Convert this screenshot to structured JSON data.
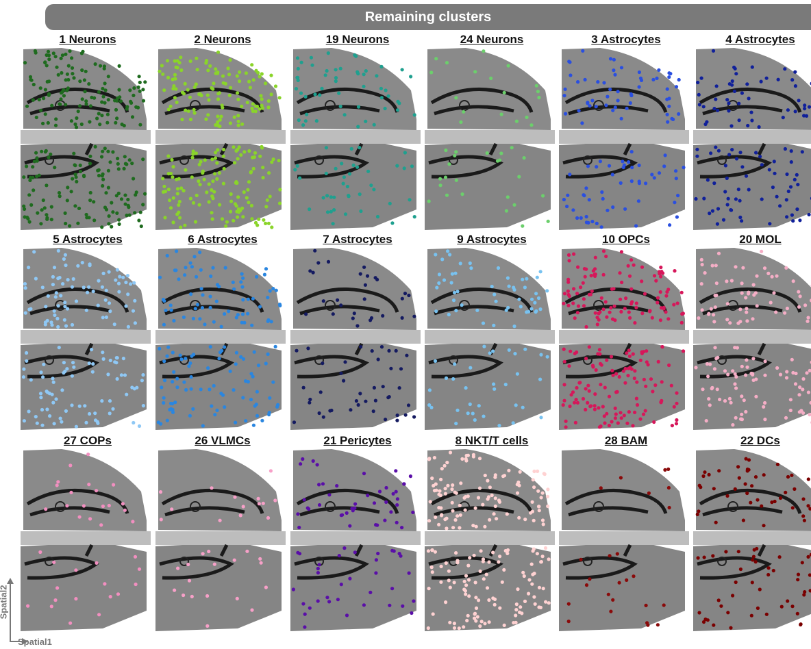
{
  "banner": {
    "title": "Remaining clusters"
  },
  "axes": {
    "y_label": "Spatial2",
    "x_label": "Spatial1"
  },
  "panels": [
    {
      "label": "1 Neurons",
      "color": "#1f6b1f",
      "density": 1.0
    },
    {
      "label": "2 Neurons",
      "color": "#8ad42a",
      "density": 1.0
    },
    {
      "label": "19 Neurons",
      "color": "#1fa08f",
      "density": 0.35
    },
    {
      "label": "24 Neurons",
      "color": "#6ccf6c",
      "density": 0.15
    },
    {
      "label": "3 Astrocytes",
      "color": "#2a4fe0",
      "density": 0.4
    },
    {
      "label": "4 Astrocytes",
      "color": "#10209a",
      "density": 0.45
    },
    {
      "label": "5 Astrocytes",
      "color": "#8fc8f5",
      "density": 0.6
    },
    {
      "label": "6 Astrocytes",
      "color": "#2a86e0",
      "density": 0.6
    },
    {
      "label": "7 Astrocytes",
      "color": "#141a60",
      "density": 0.25
    },
    {
      "label": "9 Astrocytes",
      "color": "#78c2f0",
      "density": 0.35
    },
    {
      "label": "10 OPCs",
      "color": "#d6175a",
      "density": 0.9
    },
    {
      "label": "20 MOL",
      "color": "#f5aec6",
      "density": 0.55
    },
    {
      "label": "27 COPs",
      "color": "#f28fc0",
      "density": 0.12
    },
    {
      "label": "26 VLMCs",
      "color": "#f7a0c8",
      "density": 0.1
    },
    {
      "label": "21 Pericytes",
      "color": "#5a0ea8",
      "density": 0.3
    },
    {
      "label": "8 NKT/T cells",
      "color": "#ffd2d2",
      "density": 0.85
    },
    {
      "label": "28 BAM",
      "color": "#8a0a0a",
      "density": 0.08
    },
    {
      "label": "22 DCs",
      "color": "#7a0000",
      "density": 0.35
    }
  ]
}
